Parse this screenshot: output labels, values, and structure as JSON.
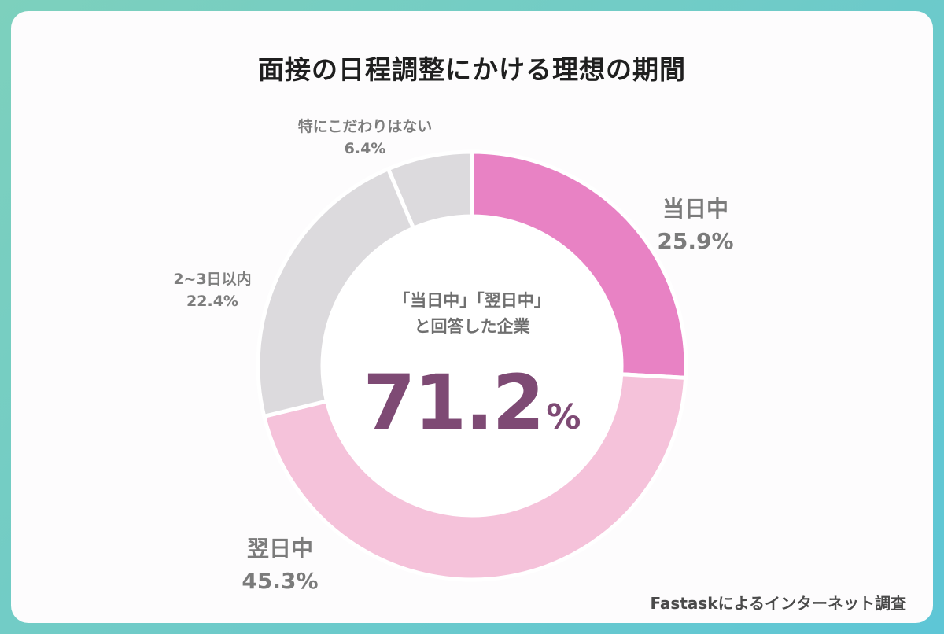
{
  "title": "面接の日程調整にかける理想の期間",
  "center": {
    "note_line1": "「当日中」「翌日中」",
    "note_line2": "と回答した企業",
    "value": "71.2",
    "unit": "%"
  },
  "labels": {
    "same_day": {
      "name": "当日中",
      "pct": "25.9%"
    },
    "next_day": {
      "name": "翌日中",
      "pct": "45.3%"
    },
    "two_three_days": {
      "name": "2~3日以内",
      "pct": "22.4%"
    },
    "no_preference": {
      "name": "特にこだわりはない",
      "pct": "6.4%"
    }
  },
  "source": "Fastaskによるインターネット調査",
  "chart_data": {
    "type": "pie",
    "donut": true,
    "title": "面接の日程調整にかける理想の期間",
    "categories": [
      "当日中",
      "翌日中",
      "2~3日以内",
      "特にこだわりはない"
    ],
    "values": [
      25.9,
      45.3,
      22.4,
      6.4
    ],
    "colors": [
      "#e882c4",
      "#f5c2da",
      "#dcdadd",
      "#dcdadd"
    ],
    "center_annotation": "「当日中」「翌日中」と回答した企業 71.2%"
  }
}
